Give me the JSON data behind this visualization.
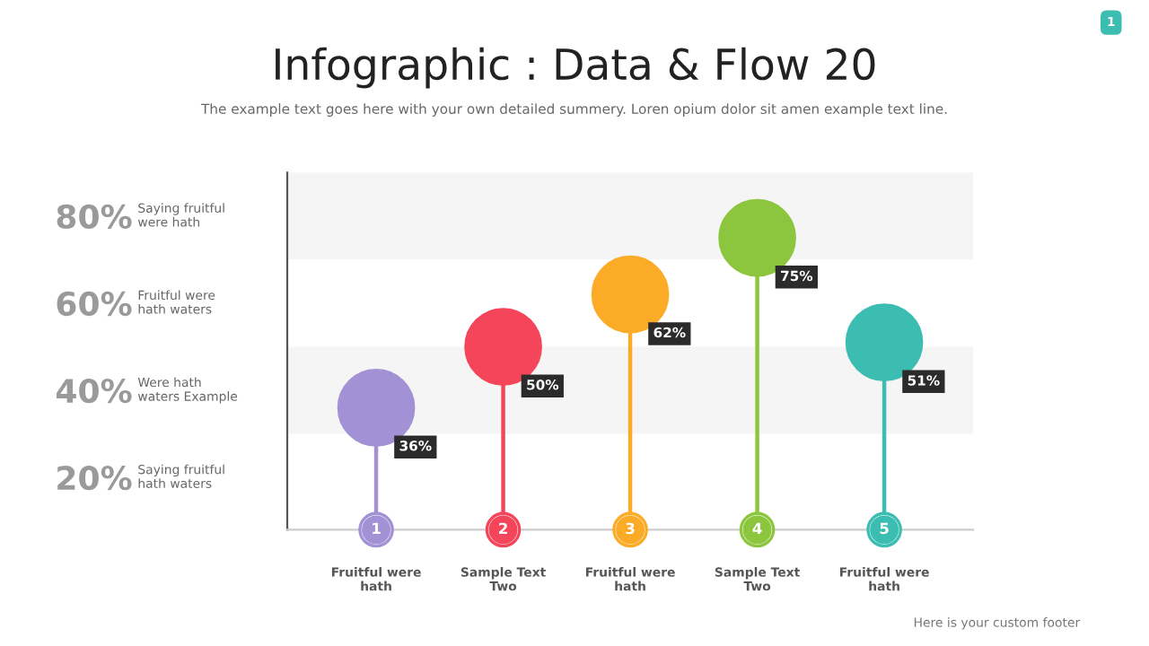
{
  "chart_data": {
    "type": "lollipop",
    "title": "Infographic : Data & Flow 20",
    "subtitle": "The example text goes here with your own detailed summery. Loren opium dolor sit amen example text line.",
    "categories": [
      "1",
      "2",
      "3",
      "4",
      "5"
    ],
    "values": [
      36,
      50,
      62,
      75,
      51
    ],
    "value_labels": [
      "36%",
      "50%",
      "62%",
      "75%",
      "51%"
    ],
    "colors": [
      "#a291d4",
      "#f5455a",
      "#fbab25",
      "#8cc63e",
      "#3bbdb2"
    ],
    "ylim": [
      8,
      90
    ],
    "yticks": [
      {
        "value": 20,
        "label": "20%"
      },
      {
        "value": 40,
        "label": "40%"
      },
      {
        "value": 60,
        "label": "60%"
      },
      {
        "value": 80,
        "label": "80%"
      }
    ],
    "bands": [
      {
        "axis": "y",
        "from": 30,
        "to": 50,
        "color": "#f5f5f5"
      },
      {
        "axis": "y",
        "from": 70,
        "to": 90,
        "color": "#f5f5f5"
      }
    ],
    "grid": false,
    "legend": false,
    "annotations": [
      "Saying fruitful\nhath waters",
      "Were hath\nwaters Example",
      "Fruitful were\nhath waters",
      "Saying fruitful\nwere hath",
      "Fruitful were\nhath",
      "Sample Text\nTwo",
      "Fruitful were\nhath",
      "Sample Text\nTwo",
      "Fruitful were\nhath",
      "Here is your custom footer",
      "1"
    ]
  }
}
